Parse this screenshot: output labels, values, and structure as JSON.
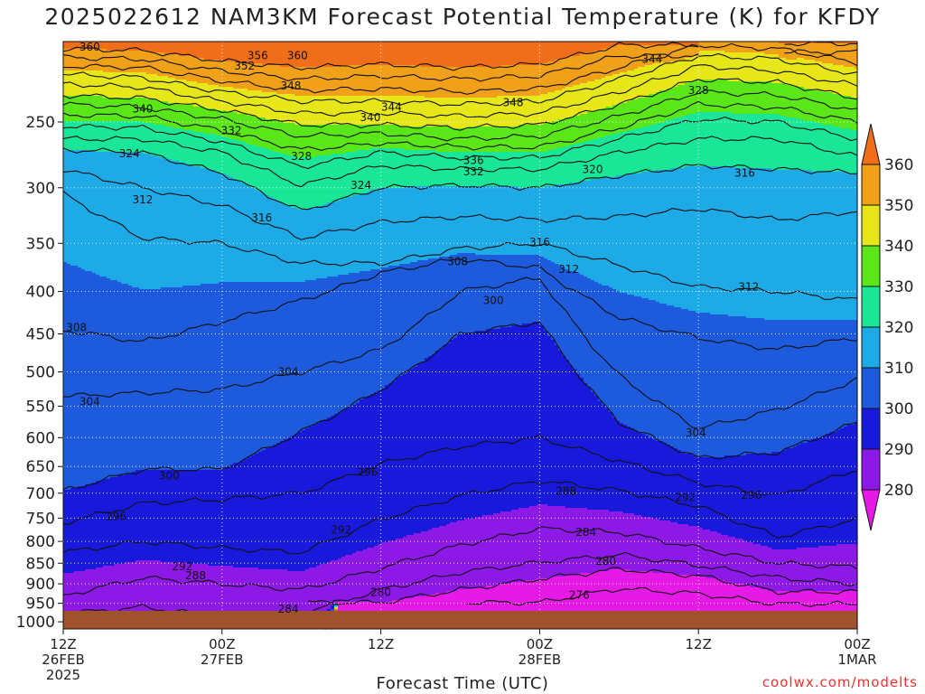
{
  "title": "2025022612 NAM3KM Forecast Potential Temperature (K) for KFDY",
  "credit": "coolwx.com/modelts",
  "chart_data": {
    "type": "heatmap",
    "title": "2025022612 NAM3KM Forecast Potential Temperature (K) for KFDY",
    "xlabel": "Forecast Time (UTC)",
    "ylabel": "",
    "y_axis": {
      "scale": "log",
      "range": [
        1020,
        200
      ],
      "ticks": [
        250,
        300,
        350,
        400,
        450,
        500,
        550,
        600,
        650,
        700,
        750,
        800,
        850,
        900,
        950,
        1000
      ]
    },
    "x_axis": {
      "range_hours": [
        0,
        60
      ],
      "ticks": [
        {
          "hour": 0,
          "lines": [
            "12Z",
            "26FEB",
            "2025"
          ]
        },
        {
          "hour": 12,
          "lines": [
            "00Z",
            "27FEB"
          ]
        },
        {
          "hour": 24,
          "lines": [
            "12Z",
            ""
          ]
        },
        {
          "hour": 36,
          "lines": [
            "00Z",
            "28FEB"
          ]
        },
        {
          "hour": 48,
          "lines": [
            "12Z",
            ""
          ]
        },
        {
          "hour": 60,
          "lines": [
            "00Z",
            "1MAR"
          ]
        }
      ]
    },
    "grid": true,
    "surface_pressure_hpa": 970,
    "colorbar": {
      "levels": [
        280,
        290,
        300,
        310,
        320,
        330,
        340,
        350,
        360
      ],
      "colors": [
        "#e619e6",
        "#8c19e6",
        "#1919dc",
        "#1e5adc",
        "#1eaae6",
        "#19e696",
        "#5ae619",
        "#e6e619",
        "#f0a019",
        "#f06e19"
      ]
    },
    "isentrope_ref_hours": [
      0,
      6,
      12,
      18,
      24,
      30,
      36,
      42,
      48,
      54,
      60
    ],
    "isentropes": [
      {
        "theta": 276,
        "pres": [
          null,
          null,
          null,
          null,
          null,
          null,
          948,
          912,
          925,
          952,
          null
        ]
      },
      {
        "theta": 280,
        "pres": [
          null,
          null,
          null,
          null,
          948,
          915,
          888,
          864,
          880,
          920,
          null
        ]
      },
      {
        "theta": 284,
        "pres": [
          978,
          960,
          985,
          975,
          915,
          872,
          848,
          830,
          855,
          885,
          900
        ]
      },
      {
        "theta": 288,
        "pres": [
          930,
          885,
          900,
          915,
          862,
          808,
          772,
          780,
          815,
          850,
          860
        ]
      },
      {
        "theta": 292,
        "pres": [
          825,
          800,
          815,
          825,
          752,
          705,
          676,
          695,
          725,
          790,
          752
        ]
      },
      {
        "theta": 296,
        "pres": [
          760,
          720,
          712,
          700,
          645,
          615,
          600,
          640,
          680,
          705,
          655
        ]
      },
      {
        "theta": 300,
        "pres": [
          695,
          655,
          655,
          590,
          525,
          450,
          435,
          575,
          635,
          625,
          575
        ]
      },
      {
        "theta": 304,
        "pres": [
          535,
          530,
          525,
          500,
          470,
          400,
          385,
          505,
          585,
          555,
          510
        ]
      },
      {
        "theta": 308,
        "pres": [
          445,
          460,
          435,
          410,
          380,
          365,
          375,
          430,
          455,
          470,
          455
        ]
      },
      {
        "theta": 312,
        "pres": [
          305,
          345,
          350,
          370,
          370,
          355,
          350,
          372,
          395,
          400,
          410
        ]
      },
      {
        "theta": 316,
        "pres": [
          285,
          300,
          315,
          345,
          330,
          325,
          328,
          325,
          318,
          328,
          320
        ]
      },
      {
        "theta": 320,
        "pres": [
          270,
          272,
          288,
          320,
          300,
          298,
          300,
          290,
          282,
          285,
          288
        ]
      },
      {
        "theta": 324,
        "pres": [
          262,
          262,
          272,
          298,
          282,
          285,
          285,
          272,
          262,
          262,
          275
        ]
      },
      {
        "theta": 328,
        "pres": [
          253,
          254,
          264,
          283,
          272,
          276,
          276,
          262,
          248,
          250,
          262
        ]
      },
      {
        "theta": 332,
        "pres": [
          245,
          246,
          256,
          270,
          265,
          268,
          268,
          254,
          238,
          240,
          250
        ]
      },
      {
        "theta": 336,
        "pres": [
          238,
          240,
          248,
          260,
          258,
          262,
          260,
          246,
          230,
          232,
          242
        ]
      },
      {
        "theta": 340,
        "pres": [
          232,
          234,
          242,
          252,
          252,
          254,
          252,
          238,
          222,
          224,
          234
        ]
      },
      {
        "theta": 344,
        "pres": [
          225,
          227,
          236,
          244,
          244,
          246,
          244,
          230,
          214,
          217,
          226
        ]
      },
      {
        "theta": 348,
        "pres": [
          219,
          221,
          230,
          236,
          236,
          238,
          236,
          222,
          208,
          210,
          219
        ]
      },
      {
        "theta": 352,
        "pres": [
          214,
          215,
          223,
          229,
          228,
          230,
          228,
          215,
          202,
          204,
          212
        ]
      },
      {
        "theta": 356,
        "pres": [
          209,
          210,
          217,
          222,
          220,
          222,
          220,
          208,
          null,
          null,
          206
        ]
      },
      {
        "theta": 360,
        "pres": [
          204,
          205,
          211,
          215,
          213,
          215,
          213,
          202,
          null,
          null,
          201
        ]
      }
    ],
    "contour_labels": [
      {
        "text": "360",
        "hour": 2.0,
        "pres": 203
      },
      {
        "text": "356",
        "hour": 14.7,
        "pres": 208
      },
      {
        "text": "360",
        "hour": 17.7,
        "pres": 208
      },
      {
        "text": "352",
        "hour": 13.7,
        "pres": 214
      },
      {
        "text": "344",
        "hour": 44.5,
        "pres": 210
      },
      {
        "text": "348",
        "hour": 17.2,
        "pres": 226
      },
      {
        "text": "340",
        "hour": 6.0,
        "pres": 241
      },
      {
        "text": "332",
        "hour": 12.7,
        "pres": 256
      },
      {
        "text": "340",
        "hour": 23.2,
        "pres": 247
      },
      {
        "text": "344",
        "hour": 24.8,
        "pres": 240
      },
      {
        "text": "348",
        "hour": 34.0,
        "pres": 237
      },
      {
        "text": "328",
        "hour": 48.0,
        "pres": 229
      },
      {
        "text": "328",
        "hour": 18.0,
        "pres": 275
      },
      {
        "text": "324",
        "hour": 5.0,
        "pres": 273
      },
      {
        "text": "336",
        "hour": 31.0,
        "pres": 278
      },
      {
        "text": "332",
        "hour": 31.0,
        "pres": 287
      },
      {
        "text": "320",
        "hour": 40.0,
        "pres": 285
      },
      {
        "text": "316",
        "hour": 51.5,
        "pres": 288
      },
      {
        "text": "324",
        "hour": 22.5,
        "pres": 298
      },
      {
        "text": "312",
        "hour": 6.0,
        "pres": 310
      },
      {
        "text": "316",
        "hour": 15.0,
        "pres": 326
      },
      {
        "text": "316",
        "hour": 36.0,
        "pres": 349
      },
      {
        "text": "308",
        "hour": 29.8,
        "pres": 368
      },
      {
        "text": "312",
        "hour": 38.2,
        "pres": 376
      },
      {
        "text": "312",
        "hour": 51.8,
        "pres": 395
      },
      {
        "text": "300",
        "hour": 32.5,
        "pres": 410
      },
      {
        "text": "308",
        "hour": 1.0,
        "pres": 442
      },
      {
        "text": "304",
        "hour": 17.0,
        "pres": 500
      },
      {
        "text": "304",
        "hour": 2.0,
        "pres": 543
      },
      {
        "text": "304",
        "hour": 47.8,
        "pres": 592
      },
      {
        "text": "300",
        "hour": 8.0,
        "pres": 667
      },
      {
        "text": "296",
        "hour": 23.0,
        "pres": 660
      },
      {
        "text": "288",
        "hour": 38.0,
        "pres": 696
      },
      {
        "text": "292",
        "hour": 47.0,
        "pres": 708
      },
      {
        "text": "296",
        "hour": 52.0,
        "pres": 704
      },
      {
        "text": "296",
        "hour": 4.0,
        "pres": 747
      },
      {
        "text": "292",
        "hour": 21.0,
        "pres": 775
      },
      {
        "text": "284",
        "hour": 39.5,
        "pres": 780
      },
      {
        "text": "292",
        "hour": 9.0,
        "pres": 858
      },
      {
        "text": "288",
        "hour": 10.0,
        "pres": 880
      },
      {
        "text": "280",
        "hour": 41.0,
        "pres": 845
      },
      {
        "text": "280",
        "hour": 24.0,
        "pres": 922
      },
      {
        "text": "276",
        "hour": 39.0,
        "pres": 929
      },
      {
        "text": "284",
        "hour": 17.0,
        "pres": 965
      }
    ]
  }
}
